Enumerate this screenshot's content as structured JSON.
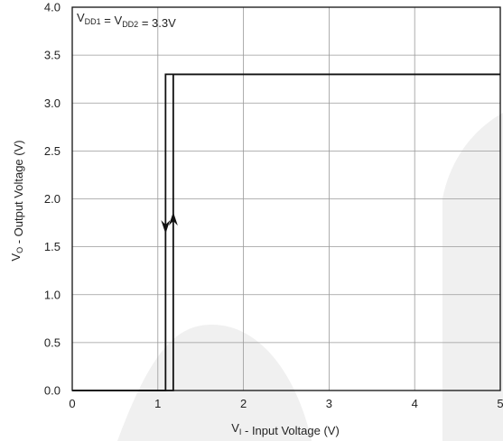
{
  "chart_data": {
    "type": "line",
    "annotation": {
      "parts": [
        {
          "text": "V",
          "sub": false
        },
        {
          "text": "DD1",
          "sub": true
        },
        {
          "text": " = V",
          "sub": false
        },
        {
          "text": "DD2",
          "sub": true
        },
        {
          "text": " = 3.3V",
          "sub": false
        }
      ]
    },
    "xlabel": {
      "parts": [
        {
          "text": "V",
          "sub": false
        },
        {
          "text": "I",
          "sub": true
        },
        {
          "text": " - Input Voltage (V)",
          "sub": false
        }
      ]
    },
    "ylabel": {
      "parts": [
        {
          "text": "V",
          "sub": false
        },
        {
          "text": "O",
          "sub": true
        },
        {
          "text": " - Output Voltage (V)",
          "sub": false
        }
      ]
    },
    "xlim": [
      0,
      5
    ],
    "ylim": [
      0,
      4
    ],
    "xticks": [
      "0",
      "1",
      "2",
      "3",
      "4",
      "5"
    ],
    "yticks": [
      "0.0",
      "0.5",
      "1.0",
      "1.5",
      "2.0",
      "2.5",
      "3.0",
      "3.5",
      "4.0"
    ],
    "xtick_values": [
      0,
      1,
      2,
      3,
      4,
      5
    ],
    "ytick_values": [
      0,
      0.5,
      1.0,
      1.5,
      2.0,
      2.5,
      3.0,
      3.5,
      4.0
    ],
    "grid": true,
    "series": [
      {
        "direction": "rising",
        "x": [
          0,
          1.18,
          1.18,
          5
        ],
        "y": [
          0,
          0,
          3.3,
          3.3
        ],
        "arrow": {
          "x": 1.18,
          "y": 1.75,
          "dir": "up"
        }
      },
      {
        "direction": "falling",
        "x": [
          5,
          1.09,
          1.09,
          0
        ],
        "y": [
          3.3,
          3.3,
          0,
          0
        ],
        "arrow": {
          "x": 1.09,
          "y": 1.75,
          "dir": "down"
        }
      }
    ],
    "colors": {
      "line": "#111111",
      "grid": "#9a9a9a",
      "frame": "#111111",
      "watermark": "#f0f0f0"
    }
  }
}
